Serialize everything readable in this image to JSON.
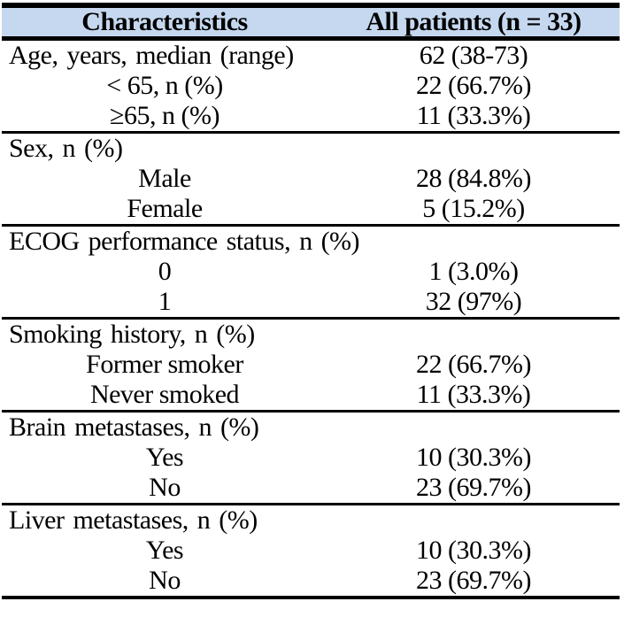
{
  "table": {
    "header": {
      "characteristics": "Characteristics",
      "all_patients": "All patients (n = 33)"
    },
    "sections": [
      {
        "name": "age",
        "rows": [
          {
            "label": "Age, years, median (range)",
            "value": "62 (38-73)"
          },
          {
            "label": "< 65, n (%)",
            "value": "22 (66.7%)"
          },
          {
            "label": "≥65, n (%)",
            "value": "11 (33.3%)"
          }
        ]
      },
      {
        "name": "sex",
        "rows": [
          {
            "label": "Sex, n (%)",
            "value": ""
          },
          {
            "label": "Male",
            "value": "28 (84.8%)"
          },
          {
            "label": "Female",
            "value": "5 (15.2%)"
          }
        ]
      },
      {
        "name": "ecog",
        "rows": [
          {
            "label": "ECOG performance status, n (%)",
            "value": ""
          },
          {
            "label": "0",
            "value": "1 (3.0%)"
          },
          {
            "label": "1",
            "value": "32 (97%)"
          }
        ]
      },
      {
        "name": "smoking",
        "rows": [
          {
            "label": "Smoking history, n (%)",
            "value": ""
          },
          {
            "label": "Former smoker",
            "value": "22 (66.7%)"
          },
          {
            "label": "Never smoked",
            "value": "11 (33.3%)"
          }
        ]
      },
      {
        "name": "brain-metastases",
        "rows": [
          {
            "label": "Brain metastases, n (%)",
            "value": ""
          },
          {
            "label": "Yes",
            "value": "10 (30.3%)"
          },
          {
            "label": "No",
            "value": "23 (69.7%)"
          }
        ]
      },
      {
        "name": "liver-metastases",
        "rows": [
          {
            "label": "Liver metastases, n (%)",
            "value": ""
          },
          {
            "label": "Yes",
            "value": "10 (30.3%)"
          },
          {
            "label": "No",
            "value": "23 (69.7%)"
          }
        ]
      }
    ]
  },
  "colors": {
    "header_bg": "#c5d8ef",
    "border": "#000000",
    "text": "#000000"
  }
}
